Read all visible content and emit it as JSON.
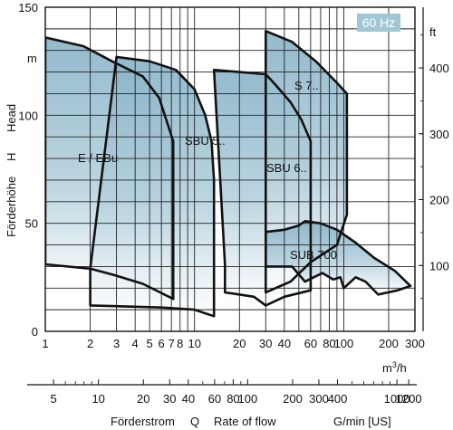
{
  "chart_data": {
    "type": "area",
    "badge": "60 Hz",
    "x_unit": "m",
    "x_unit_sup": "3",
    "x_unit_tail": "/h",
    "y_unit_left": "m",
    "y_unit_right": "ft",
    "ylabel_left": "Förderhöhe",
    "ylabel_mid": "H",
    "ylabel_right": "Head",
    "xlabel_parts": [
      "Förderstrom",
      "Q",
      "Rate of flow",
      "G/min [US]"
    ],
    "xscale": "log",
    "xlim": [
      1,
      300
    ],
    "ylim": [
      0,
      150
    ],
    "y_ticks_left": [
      "150",
      "100",
      "50",
      "0"
    ],
    "y_ticks_right": [
      "ft",
      "400",
      "300",
      "200",
      "100"
    ],
    "x_ticks_m3h": [
      "1",
      "2",
      "3",
      "4",
      "5",
      "6",
      "7",
      "8",
      "10",
      "20",
      "30",
      "40",
      "60",
      "80",
      "100",
      "200",
      "300"
    ],
    "x_ticks_gpm": [
      "5",
      "10",
      "20",
      "30",
      "40",
      "60",
      "80",
      "100",
      "200",
      "300",
      "400",
      "1000",
      "1200"
    ],
    "series": [
      {
        "name": "E / EBu",
        "upper": [
          [
            1,
            136
          ],
          [
            1.8,
            132
          ],
          [
            2.8,
            125
          ],
          [
            4.5,
            118
          ],
          [
            5.8,
            108
          ],
          [
            7.2,
            88
          ],
          [
            7.2,
            15
          ]
        ],
        "lower": [
          [
            1,
            31
          ],
          [
            2,
            29
          ],
          [
            2.9,
            26
          ],
          [
            4.5,
            22
          ],
          [
            7.2,
            15
          ]
        ]
      },
      {
        "name": "SBU 5..",
        "upper": [
          [
            3,
            127
          ],
          [
            5,
            125
          ],
          [
            7.5,
            121
          ],
          [
            10,
            112
          ],
          [
            11.8,
            100
          ],
          [
            13,
            88
          ],
          [
            13.5,
            70
          ],
          [
            13.5,
            18
          ]
        ],
        "lower": [
          [
            2,
            29
          ],
          [
            2,
            12
          ],
          [
            6,
            11
          ],
          [
            10,
            10
          ],
          [
            13.5,
            7
          ]
        ]
      },
      {
        "name": "SBU 6..",
        "upper": [
          [
            13.5,
            121
          ],
          [
            20,
            120
          ],
          [
            30,
            119
          ],
          [
            35,
            114
          ],
          [
            44,
            106
          ],
          [
            52,
            98
          ],
          [
            60,
            88
          ],
          [
            60,
            19
          ]
        ],
        "lower": [
          [
            16,
            31
          ],
          [
            16,
            18
          ],
          [
            25,
            16
          ],
          [
            30,
            12
          ],
          [
            40,
            16
          ],
          [
            60,
            19
          ]
        ]
      },
      {
        "name": "S 7..",
        "upper": [
          [
            30,
            139
          ],
          [
            45,
            134
          ],
          [
            65,
            125
          ],
          [
            90,
            115
          ],
          [
            105,
            110
          ],
          [
            105,
            54
          ]
        ],
        "lower": [
          [
            30,
            30
          ],
          [
            30,
            18
          ],
          [
            44,
            23
          ],
          [
            60,
            32
          ],
          [
            90,
            40
          ],
          [
            105,
            54
          ]
        ]
      },
      {
        "name": "SUB 700",
        "upper": [
          [
            30,
            46
          ],
          [
            40,
            47
          ],
          [
            50,
            49
          ],
          [
            55,
            51
          ],
          [
            70,
            50
          ],
          [
            90,
            47
          ],
          [
            120,
            41
          ],
          [
            160,
            34
          ],
          [
            220,
            28
          ],
          [
            280,
            21
          ]
        ],
        "lower": [
          [
            30,
            30
          ],
          [
            45,
            30
          ],
          [
            55,
            23
          ],
          [
            72,
            27
          ],
          [
            85,
            24
          ],
          [
            95,
            25
          ],
          [
            100,
            20
          ],
          [
            120,
            25
          ],
          [
            140,
            23
          ],
          [
            170,
            17
          ],
          [
            230,
            19
          ],
          [
            280,
            21
          ]
        ]
      }
    ]
  }
}
